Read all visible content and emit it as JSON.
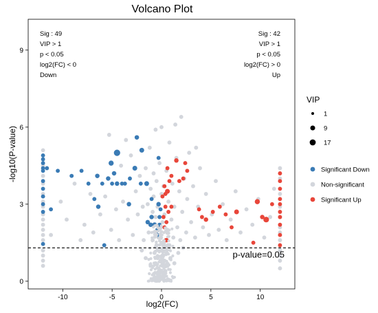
{
  "chart_data": {
    "type": "scatter",
    "title": "Volcano Plot",
    "xlabel": "log2(FC)",
    "ylabel": "-log10(P-value)",
    "xlim": [
      -13.5,
      13.5
    ],
    "ylim": [
      -0.3,
      10.2
    ],
    "x_ticks": [
      -10,
      -5,
      0,
      5,
      10
    ],
    "y_ticks": [
      0,
      3,
      6,
      9
    ],
    "grid": false,
    "threshold": {
      "y": 1.3,
      "label": "p-value=0.05"
    },
    "annotations": {
      "down": [
        "Sig : 49",
        "VIP > 1",
        "p < 0.05",
        "log2(FC) < 0",
        "Down"
      ],
      "up": [
        "Sig : 42",
        "VIP > 1",
        "p < 0.05",
        "log2(FC) > 0",
        "Up"
      ]
    },
    "size_legend": {
      "title": "VIP",
      "entries": [
        {
          "label": "1",
          "value": 1
        },
        {
          "label": "9",
          "value": 9
        },
        {
          "label": "17",
          "value": 17
        }
      ]
    },
    "legend_position": "right",
    "colors": {
      "Significant Down": "#3a7bb5",
      "Non-significant": "#d3d6dc",
      "Significant Up": "#e8463a"
    },
    "series": [
      {
        "name": "Significant Down",
        "points": [
          [
            -12,
            4.9,
            2
          ],
          [
            -12,
            4.75,
            2
          ],
          [
            -12,
            4.6,
            2
          ],
          [
            -12,
            4.4,
            2
          ],
          [
            -12,
            4.3,
            2
          ],
          [
            -12,
            3.9,
            2
          ],
          [
            -12,
            3.6,
            2
          ],
          [
            -12,
            3.3,
            2
          ],
          [
            -12,
            3.0,
            2
          ],
          [
            -12,
            2.7,
            2
          ],
          [
            -12,
            1.45,
            2
          ],
          [
            -11.6,
            4.4,
            2
          ],
          [
            -11.2,
            2.8,
            2
          ],
          [
            -10.5,
            4.3,
            2
          ],
          [
            -9.1,
            4.1,
            2
          ],
          [
            -8.1,
            4.3,
            2
          ],
          [
            -7.4,
            3.8,
            2
          ],
          [
            -6.8,
            3.2,
            2
          ],
          [
            -6.5,
            4.1,
            3
          ],
          [
            -6.4,
            2.9,
            3
          ],
          [
            -6,
            3.8,
            2
          ],
          [
            -5.8,
            1.4,
            2
          ],
          [
            -5.4,
            4.0,
            3
          ],
          [
            -5.1,
            4.6,
            5
          ],
          [
            -5,
            3.8,
            2
          ],
          [
            -4.8,
            4.2,
            3
          ],
          [
            -4.5,
            5.0,
            10
          ],
          [
            -4.5,
            3.8,
            3
          ],
          [
            -4,
            3.8,
            2
          ],
          [
            -3.7,
            3.8,
            2
          ],
          [
            -3.3,
            3.0,
            3
          ],
          [
            -3.2,
            4.0,
            2
          ],
          [
            -2.7,
            4.4,
            4
          ],
          [
            -2.5,
            5.6,
            3
          ],
          [
            -2,
            5.1,
            4
          ],
          [
            -2.1,
            3.8,
            2
          ],
          [
            -1.5,
            3.8,
            4
          ],
          [
            -1.4,
            2.3,
            3
          ],
          [
            -1.1,
            2.2,
            3
          ],
          [
            -1,
            3.2,
            2
          ],
          [
            -1,
            2.5,
            3
          ],
          [
            -0.7,
            2.2,
            4
          ],
          [
            -0.5,
            1.8,
            5
          ],
          [
            -0.4,
            2.0,
            3
          ],
          [
            -0.3,
            3.0,
            3
          ],
          [
            -0.3,
            4.8,
            2
          ],
          [
            -0.2,
            2.5,
            2
          ],
          [
            -0.2,
            2.2,
            2
          ],
          [
            -0.1,
            2.8,
            2
          ]
        ]
      },
      {
        "name": "Non-significant",
        "points": [
          [
            -12,
            5.1,
            2
          ],
          [
            -12,
            4.5,
            2
          ],
          [
            -12,
            4.1,
            2
          ],
          [
            -12,
            3.8,
            2
          ],
          [
            -12,
            3.4,
            2
          ],
          [
            -12,
            3.1,
            2
          ],
          [
            -12,
            2.9,
            2
          ],
          [
            -12,
            2.6,
            2
          ],
          [
            -12,
            2.4,
            2
          ],
          [
            -12,
            2.2,
            2
          ],
          [
            -12,
            2.0,
            2
          ],
          [
            -12,
            1.8,
            2
          ],
          [
            -12,
            1.6,
            2
          ],
          [
            -12,
            1.2,
            2
          ],
          [
            -12,
            1.0,
            2
          ],
          [
            -12,
            0.8,
            2
          ],
          [
            -12,
            0.6,
            2
          ],
          [
            12,
            4.4,
            2
          ],
          [
            12,
            4.0,
            2
          ],
          [
            12,
            3.4,
            2
          ],
          [
            12,
            2.9,
            2
          ],
          [
            12,
            2.5,
            2
          ],
          [
            12,
            2.1,
            2
          ],
          [
            12,
            1.9,
            2
          ],
          [
            12,
            1.6,
            2
          ],
          [
            12,
            1.2,
            2
          ],
          [
            12,
            1.0,
            2
          ],
          [
            12,
            0.8,
            2
          ],
          [
            12,
            0.5,
            2
          ],
          [
            -11.2,
            1.8,
            2
          ],
          [
            -10.2,
            3.1,
            2
          ],
          [
            -9.6,
            2.4,
            2
          ],
          [
            -8.8,
            3.8,
            2
          ],
          [
            -8.2,
            1.6,
            2
          ],
          [
            -7.8,
            2.2,
            2
          ],
          [
            -7.2,
            3.4,
            2
          ],
          [
            -6.9,
            1.9,
            2
          ],
          [
            -6.2,
            2.6,
            2
          ],
          [
            -5.7,
            3.3,
            2
          ],
          [
            -5.3,
            5.7,
            2
          ],
          [
            -5.1,
            2.0,
            2
          ],
          [
            -4.6,
            2.8,
            2
          ],
          [
            -4.3,
            1.6,
            2
          ],
          [
            -4.1,
            4.5,
            2
          ],
          [
            -3.9,
            3.1,
            2
          ],
          [
            -3.6,
            5.5,
            2
          ],
          [
            -3.4,
            2.4,
            2
          ],
          [
            -3.1,
            4.9,
            2
          ],
          [
            -2.9,
            1.8,
            2
          ],
          [
            -2.6,
            3.5,
            2
          ],
          [
            -2.4,
            2.6,
            2
          ],
          [
            -2.2,
            4.1,
            2
          ],
          [
            -1.9,
            2.9,
            2
          ],
          [
            -1.8,
            1.6,
            2
          ],
          [
            -1.6,
            4.4,
            2
          ],
          [
            -1.4,
            3.0,
            2
          ],
          [
            -1.3,
            1.9,
            2
          ],
          [
            -1.2,
            5.2,
            2
          ],
          [
            -1.1,
            3.6,
            2
          ],
          [
            -0.9,
            2.7,
            2
          ],
          [
            -0.9,
            1.6,
            2
          ],
          [
            -0.8,
            4.2,
            2
          ],
          [
            -0.8,
            3.3,
            2
          ],
          [
            -0.7,
            1.1,
            2
          ],
          [
            -0.6,
            2.5,
            2
          ],
          [
            -0.6,
            0.7,
            2
          ],
          [
            -0.5,
            3.9,
            2
          ],
          [
            -0.5,
            1.4,
            2
          ],
          [
            -0.4,
            0.9,
            2
          ],
          [
            -0.4,
            2.9,
            2
          ],
          [
            -0.3,
            0.5,
            2
          ],
          [
            -0.3,
            1.7,
            2
          ],
          [
            -0.2,
            4.6,
            2
          ],
          [
            -0.2,
            1.2,
            2
          ],
          [
            -0.2,
            0.3,
            2
          ],
          [
            -0.1,
            2.1,
            2
          ],
          [
            -0.1,
            0.8,
            2
          ],
          [
            0,
            6.0,
            2
          ],
          [
            0,
            3.4,
            2
          ],
          [
            0,
            1.5,
            2
          ],
          [
            0,
            0.4,
            2
          ],
          [
            0,
            0.1,
            2
          ],
          [
            0.1,
            2.3,
            2
          ],
          [
            0.1,
            1.0,
            2
          ],
          [
            0.1,
            0.6,
            2
          ],
          [
            0.2,
            3.7,
            2
          ],
          [
            0.2,
            1.3,
            2
          ],
          [
            0.2,
            0.2,
            2
          ],
          [
            0.3,
            0.8,
            2
          ],
          [
            0.3,
            2.6,
            2
          ],
          [
            0.4,
            1.6,
            2
          ],
          [
            0.4,
            0.4,
            2
          ],
          [
            0.5,
            4.3,
            2
          ],
          [
            0.5,
            1.1,
            2
          ],
          [
            0.6,
            2.0,
            2
          ],
          [
            0.6,
            0.6,
            2
          ],
          [
            0.7,
            3.1,
            2
          ],
          [
            0.8,
            1.4,
            2
          ],
          [
            0.8,
            5.4,
            2
          ],
          [
            0.9,
            0.9,
            2
          ],
          [
            1.0,
            2.4,
            2
          ],
          [
            1.1,
            3.8,
            2
          ],
          [
            1.2,
            1.7,
            2
          ],
          [
            1.3,
            2.9,
            2
          ],
          [
            1.4,
            6.1,
            2
          ],
          [
            1.5,
            4.8,
            2
          ],
          [
            1.6,
            2.1,
            2
          ],
          [
            1.8,
            3.5,
            2
          ],
          [
            1.9,
            1.6,
            2
          ],
          [
            2.0,
            6.4,
            2
          ],
          [
            2.1,
            2.7,
            2
          ],
          [
            2.3,
            4.0,
            2
          ],
          [
            2.5,
            1.9,
            2
          ],
          [
            2.6,
            3.2,
            2
          ],
          [
            2.8,
            5.0,
            2
          ],
          [
            3.0,
            2.3,
            2
          ],
          [
            3.2,
            3.7,
            2
          ],
          [
            3.4,
            1.7,
            2
          ],
          [
            3.7,
            2.9,
            2
          ],
          [
            3.9,
            4.4,
            2
          ],
          [
            4.2,
            2.1,
            2
          ],
          [
            4.5,
            3.4,
            2
          ],
          [
            4.8,
            1.8,
            2
          ],
          [
            5.1,
            2.6,
            2
          ],
          [
            5.5,
            3.9,
            2
          ],
          [
            5.8,
            2.0,
            2
          ],
          [
            6.2,
            3.0,
            2
          ],
          [
            6.6,
            1.6,
            2
          ],
          [
            7.0,
            2.4,
            2
          ],
          [
            7.5,
            3.5,
            2
          ],
          [
            8.0,
            1.9,
            2
          ],
          [
            8.6,
            2.8,
            2
          ],
          [
            9.2,
            2.2,
            2
          ],
          [
            9.8,
            3.2,
            2
          ],
          [
            10.4,
            1.7,
            2
          ],
          [
            11.0,
            2.5,
            2
          ],
          [
            11.4,
            3.6,
            2
          ],
          [
            -1.6,
            0.9,
            2
          ],
          [
            -1.1,
            0.6,
            2
          ],
          [
            1.3,
            0.7,
            2
          ],
          [
            1.7,
            1.1,
            2
          ],
          [
            -2.0,
            1.2,
            2
          ],
          [
            2.2,
            1.3,
            2
          ],
          [
            -0.6,
            5.9,
            2
          ],
          [
            3.5,
            5.2,
            2
          ]
        ]
      },
      {
        "name": "Significant Up",
        "points": [
          [
            0.1,
            3.3,
            2
          ],
          [
            0.2,
            2.5,
            2
          ],
          [
            0.3,
            3.7,
            2
          ],
          [
            0.3,
            2.1,
            2
          ],
          [
            0.4,
            2.9,
            2
          ],
          [
            0.4,
            3.4,
            2
          ],
          [
            0.5,
            2.3,
            2
          ],
          [
            0.5,
            1.6,
            3
          ],
          [
            0.6,
            3.5,
            4
          ],
          [
            0.6,
            4.4,
            2
          ],
          [
            0.7,
            2.7,
            2
          ],
          [
            0.8,
            3.9,
            2
          ],
          [
            1.0,
            2.9,
            2
          ],
          [
            1.0,
            4.1,
            2
          ],
          [
            1.5,
            4.7,
            3
          ],
          [
            1.8,
            3.9,
            2
          ],
          [
            2.2,
            4.0,
            2
          ],
          [
            2.4,
            4.6,
            2
          ],
          [
            2.6,
            4.3,
            2
          ],
          [
            3.8,
            2.8,
            2
          ],
          [
            4.1,
            2.5,
            2
          ],
          [
            4.5,
            2.4,
            3
          ],
          [
            5.2,
            2.7,
            2
          ],
          [
            5.9,
            2.9,
            2
          ],
          [
            6.5,
            2.6,
            2
          ],
          [
            7.1,
            2.1,
            2
          ],
          [
            7.6,
            2.7,
            4
          ],
          [
            9.3,
            1.5,
            2
          ],
          [
            9.7,
            3.1,
            5
          ],
          [
            10.2,
            2.5,
            3
          ],
          [
            10.6,
            2.4,
            7
          ],
          [
            12,
            4.2,
            2
          ],
          [
            12,
            3.9,
            2
          ],
          [
            12,
            3.6,
            2
          ],
          [
            12,
            3.2,
            2
          ],
          [
            12,
            3.0,
            2
          ],
          [
            12,
            2.7,
            2
          ],
          [
            12,
            2.5,
            2
          ],
          [
            12,
            2.2,
            2
          ],
          [
            12,
            1.8,
            2
          ],
          [
            12,
            1.4,
            2
          ],
          [
            11.2,
            3.0,
            2
          ]
        ]
      }
    ]
  },
  "legend": {
    "title": "",
    "items": [
      {
        "label": "Significant Down",
        "color": "#3a7bb5"
      },
      {
        "label": "Non-significant",
        "color": "#d3d6dc"
      },
      {
        "label": "Significant Up",
        "color": "#e8463a"
      }
    ]
  }
}
